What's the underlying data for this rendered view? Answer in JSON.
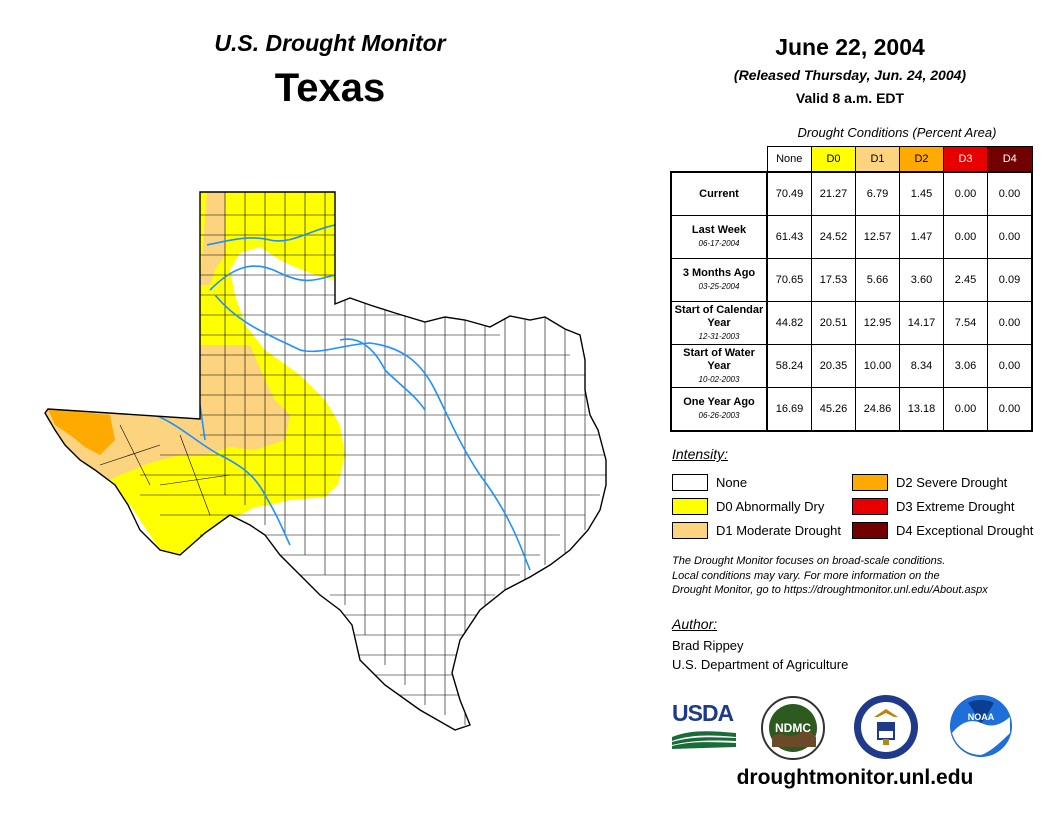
{
  "header": {
    "title": "U.S. Drought Monitor",
    "region": "Texas",
    "date": "June 22, 2004",
    "released": "(Released Thursday, Jun. 24, 2004)",
    "valid": "Valid 8 a.m. EDT"
  },
  "conditions": {
    "title": "Drought Conditions (Percent Area)",
    "columns": [
      {
        "label": "None",
        "color": "#ffffff"
      },
      {
        "label": "D0",
        "color": "#ffff00"
      },
      {
        "label": "D1",
        "color": "#fcd37f"
      },
      {
        "label": "D2",
        "color": "#ffaa00"
      },
      {
        "label": "D3",
        "color": "#e60000"
      },
      {
        "label": "D4",
        "color": "#730000"
      }
    ],
    "rows": [
      {
        "label": "Current",
        "sub": "",
        "values": [
          "70.49",
          "21.27",
          "6.79",
          "1.45",
          "0.00",
          "0.00"
        ]
      },
      {
        "label": "Last Week",
        "sub": "06-17-2004",
        "values": [
          "61.43",
          "24.52",
          "12.57",
          "1.47",
          "0.00",
          "0.00"
        ]
      },
      {
        "label": "3 Months Ago",
        "sub": "03-25-2004",
        "values": [
          "70.65",
          "17.53",
          "5.66",
          "3.60",
          "2.45",
          "0.09"
        ]
      },
      {
        "label": "Start of Calendar Year",
        "sub": "12-31-2003",
        "values": [
          "44.82",
          "20.51",
          "12.95",
          "14.17",
          "7.54",
          "0.00"
        ]
      },
      {
        "label": "Start of Water Year",
        "sub": "10-02-2003",
        "values": [
          "58.24",
          "20.35",
          "10.00",
          "8.34",
          "3.06",
          "0.00"
        ]
      },
      {
        "label": "One Year Ago",
        "sub": "06-26-2003",
        "values": [
          "16.69",
          "45.26",
          "24.86",
          "13.18",
          "0.00",
          "0.00"
        ]
      }
    ]
  },
  "legend": {
    "title": "Intensity:",
    "items": [
      {
        "label": "None",
        "color": "#ffffff"
      },
      {
        "label": "D0 Abnormally Dry",
        "color": "#ffff00"
      },
      {
        "label": "D1 Moderate Drought",
        "color": "#fcd37f"
      },
      {
        "label": "D2 Severe Drought",
        "color": "#ffaa00"
      },
      {
        "label": "D3 Extreme Drought",
        "color": "#e60000"
      },
      {
        "label": "D4 Exceptional Drought",
        "color": "#730000"
      }
    ]
  },
  "note": {
    "line1": "The Drought Monitor focuses on broad-scale conditions.",
    "line2": "Local conditions may vary. For more information on the",
    "line3": "Drought Monitor, go to https://droughtmonitor.unl.edu/About.aspx"
  },
  "author": {
    "title": "Author:",
    "name": "Brad Rippey",
    "org": "U.S. Department of Agriculture"
  },
  "logos": {
    "usda": "USDA",
    "ndmc": "NDMC",
    "noaa": "NOAA"
  },
  "footer": {
    "url": "droughtmonitor.unl.edu"
  },
  "colors": {
    "river": "#1e90ff",
    "county_line": "#000000"
  }
}
